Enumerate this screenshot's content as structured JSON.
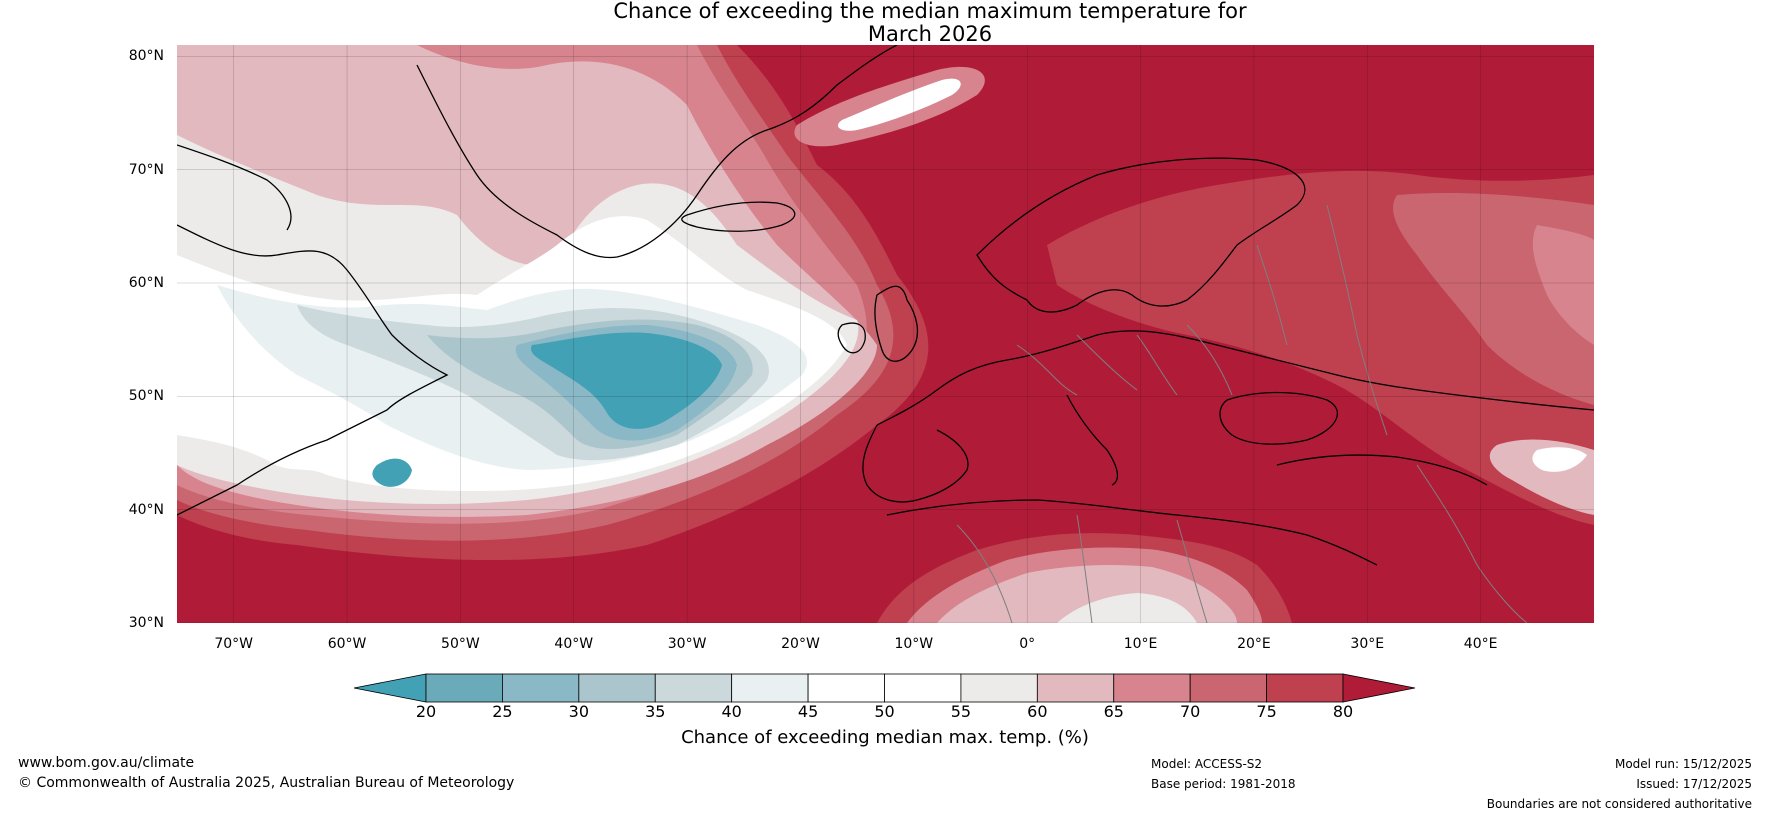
{
  "title": {
    "line1": "Chance of exceeding the median maximum temperature for",
    "line2": "March 2026"
  },
  "map": {
    "lat_labels": [
      "80°N",
      "70°N",
      "60°N",
      "50°N",
      "40°N",
      "30°N"
    ],
    "lon_labels": [
      "70°W",
      "60°W",
      "50°W",
      "40°W",
      "30°W",
      "20°W",
      "10°W",
      "0°",
      "10°E",
      "20°E",
      "30°E",
      "40°E"
    ],
    "extent": {
      "lon_min": -75,
      "lon_max": 50,
      "lat_min": 30,
      "lat_max": 81
    },
    "colors": {
      "below_20": "#43a1b5",
      "c20_25": "#6aaab9",
      "c25_30": "#8ab8c6",
      "c30_35": "#aac6cc",
      "c35_40": "#cbd8dc",
      "c40_45": "#e9f0f2",
      "c45_55": "#ffffff",
      "c55_60": "#ecebea",
      "c60_65": "#e2b9bf",
      "c65_70": "#d7848f",
      "c70_75": "#c96670",
      "c75_80": "#bf404f",
      "above_80": "#b01c38"
    }
  },
  "colorbar": {
    "ticks": [
      "20",
      "25",
      "30",
      "35",
      "40",
      "45",
      "50",
      "55",
      "60",
      "65",
      "70",
      "75",
      "80"
    ],
    "colors": [
      "#43a1b5",
      "#6aaab9",
      "#8ab8c6",
      "#aac6cc",
      "#cbd8dc",
      "#e9f0f2",
      "#ffffff",
      "#ffffff",
      "#ecebea",
      "#e2b9bf",
      "#d7848f",
      "#c96670",
      "#bf404f",
      "#b01c38"
    ],
    "label": "Chance of exceeding median max. temp. (%)"
  },
  "footer": {
    "website": "www.bom.gov.au/climate",
    "copyright": "© Commonwealth of Australia 2025, Australian Bureau of Meteorology",
    "model": "Model: ACCESS-S2",
    "base_period": "Base period: 1981-2018",
    "model_run": "Model run: 15/12/2025",
    "issued": "Issued: 17/12/2025",
    "disclaimer": "Boundaries are not considered authoritative"
  }
}
